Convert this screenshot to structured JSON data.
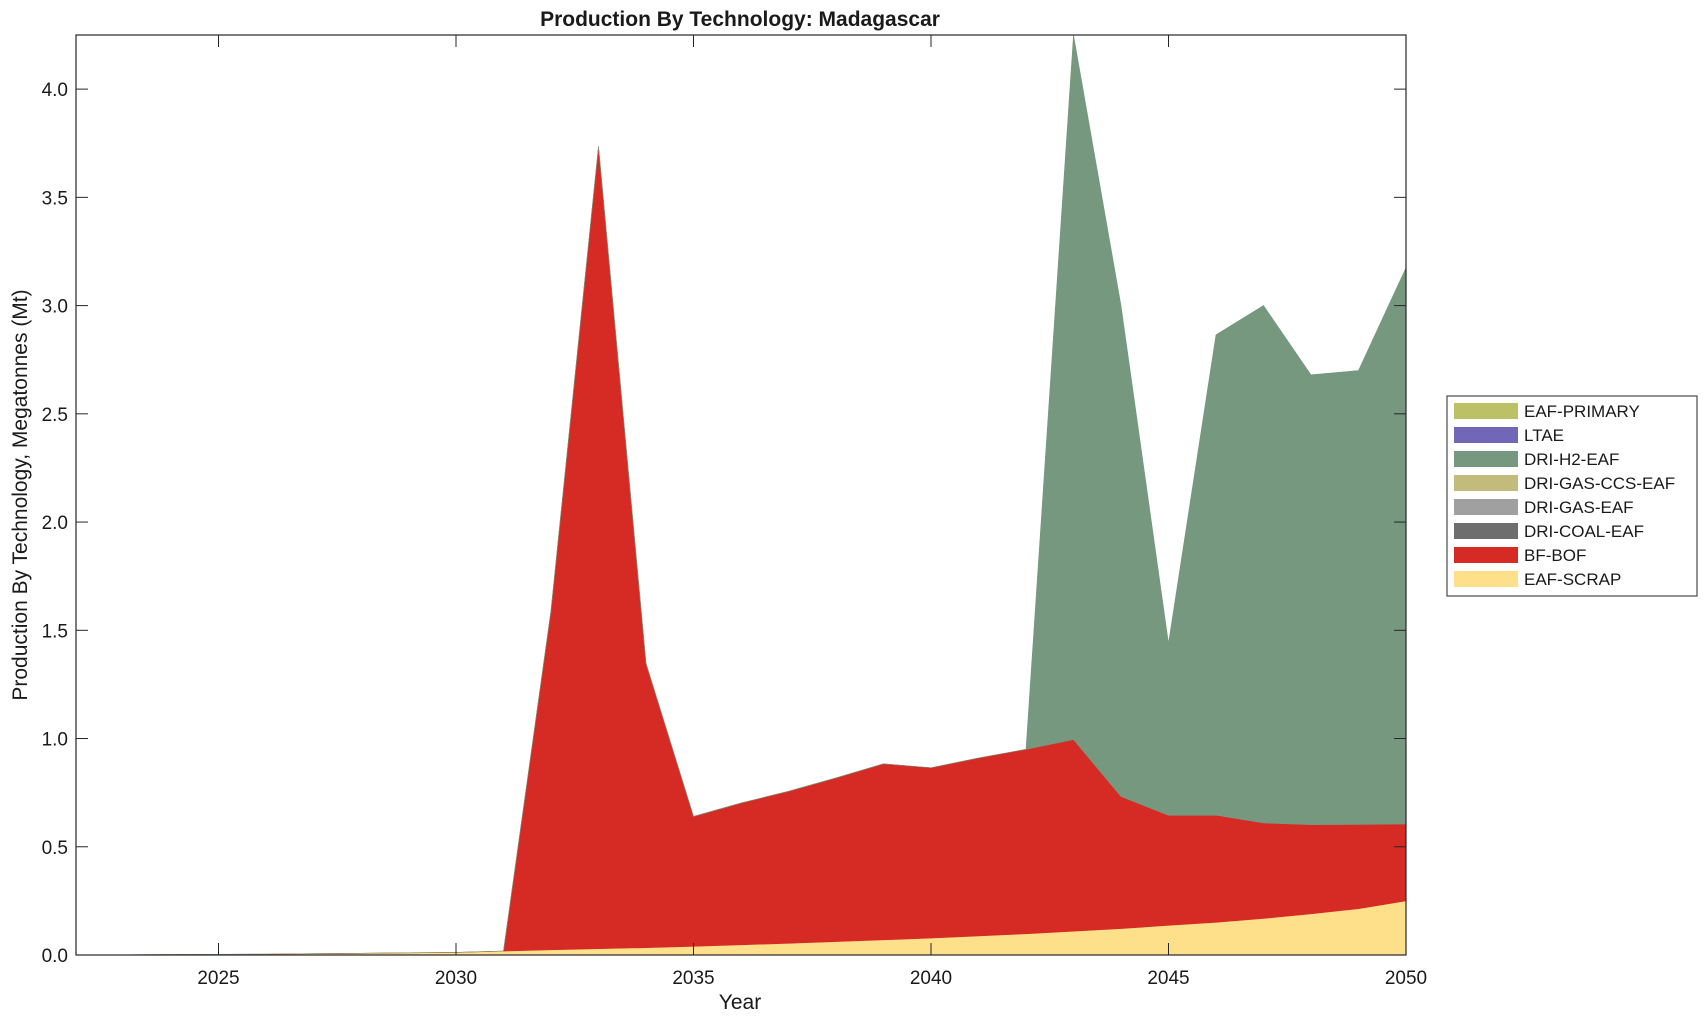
{
  "chart_data": {
    "type": "area",
    "stacked": true,
    "title": "Production By Technology: Madagascar",
    "xlabel": "Year",
    "ylabel": "Production By Technology, Megatonnes (Mt)",
    "xlim": [
      2022,
      2050
    ],
    "ylim": [
      0,
      4.25
    ],
    "x_ticks": [
      2025,
      2030,
      2035,
      2040,
      2045,
      2050
    ],
    "y_ticks": [
      0.0,
      0.5,
      1.0,
      1.5,
      2.0,
      2.5,
      3.0,
      3.5,
      4.0
    ],
    "y_tick_labels": [
      "0.0",
      "0.5",
      "1.0",
      "1.5",
      "2.0",
      "2.5",
      "3.0",
      "3.5",
      "4.0"
    ],
    "grid": false,
    "legend_position": "right",
    "x": [
      2022,
      2023,
      2024,
      2025,
      2026,
      2027,
      2028,
      2029,
      2030,
      2031,
      2032,
      2033,
      2034,
      2035,
      2036,
      2037,
      2038,
      2039,
      2040,
      2041,
      2042,
      2043,
      2044,
      2045,
      2046,
      2047,
      2048,
      2049,
      2050
    ],
    "series": [
      {
        "name": "EAF-SCRAP",
        "color": "#fee08b",
        "values": [
          0.0,
          0.001,
          0.002,
          0.003,
          0.004,
          0.006,
          0.008,
          0.01,
          0.012,
          0.018,
          0.024,
          0.029,
          0.034,
          0.04,
          0.047,
          0.054,
          0.062,
          0.07,
          0.078,
          0.088,
          0.098,
          0.11,
          0.122,
          0.137,
          0.151,
          0.169,
          0.19,
          0.214,
          0.25
        ]
      },
      {
        "name": "BF-BOF",
        "color": "#d52b24",
        "values": [
          0,
          0,
          0,
          0,
          0,
          0,
          0,
          0,
          0,
          0,
          1.566,
          3.706,
          1.313,
          0.6,
          0.655,
          0.702,
          0.756,
          0.813,
          0.787,
          0.822,
          0.852,
          0.885,
          0.61,
          0.508,
          0.495,
          0.441,
          0.412,
          0.389,
          0.355
        ]
      },
      {
        "name": "DRI-COAL-EAF",
        "color": "#6e6e6e",
        "values": [
          0,
          0,
          0,
          0,
          0,
          0,
          0,
          0,
          0,
          0,
          0,
          0,
          0,
          0,
          0,
          0,
          0,
          0,
          0,
          0,
          0,
          0,
          0,
          0,
          0,
          0,
          0,
          0,
          0
        ]
      },
      {
        "name": "DRI-GAS-EAF",
        "color": "#a0a0a0",
        "values": [
          0,
          0,
          0,
          0,
          0,
          0,
          0,
          0,
          0,
          0,
          0,
          0,
          0,
          0,
          0,
          0,
          0,
          0,
          0,
          0,
          0,
          0,
          0,
          0,
          0,
          0,
          0,
          0,
          0
        ]
      },
      {
        "name": "DRI-GAS-CCS-EAF",
        "color": "#c3bb7b",
        "values": [
          0,
          0,
          0,
          0,
          0,
          0,
          0,
          0,
          0,
          0,
          0,
          0,
          0,
          0,
          0,
          0,
          0,
          0,
          0,
          0,
          0,
          0,
          0,
          0,
          0,
          0,
          0,
          0,
          0
        ]
      },
      {
        "name": "DRI-H2-EAF",
        "color": "#76987e",
        "values": [
          0,
          0,
          0,
          0,
          0,
          0,
          0,
          0,
          0,
          0,
          0,
          0,
          0,
          0,
          0,
          0,
          0,
          0,
          0,
          0,
          0,
          3.255,
          2.268,
          0.795,
          2.219,
          2.39,
          2.078,
          2.097,
          2.57
        ]
      },
      {
        "name": "LTAE",
        "color": "#7166b8",
        "values": [
          0,
          0,
          0,
          0,
          0,
          0,
          0,
          0,
          0,
          0,
          0,
          0,
          0,
          0,
          0,
          0,
          0,
          0,
          0,
          0,
          0,
          0,
          0,
          0,
          0,
          0,
          0,
          0,
          0
        ]
      },
      {
        "name": "EAF-PRIMARY",
        "color": "#bcc165",
        "values": [
          0,
          0,
          0,
          0,
          0,
          0,
          0,
          0,
          0,
          0,
          0,
          0,
          0,
          0,
          0,
          0,
          0,
          0,
          0,
          0,
          0,
          0,
          0,
          0,
          0,
          0,
          0,
          0,
          0
        ]
      }
    ],
    "legend_order": [
      "EAF-PRIMARY",
      "LTAE",
      "DRI-H2-EAF",
      "DRI-GAS-CCS-EAF",
      "DRI-GAS-EAF",
      "DRI-COAL-EAF",
      "BF-BOF",
      "EAF-SCRAP"
    ]
  }
}
